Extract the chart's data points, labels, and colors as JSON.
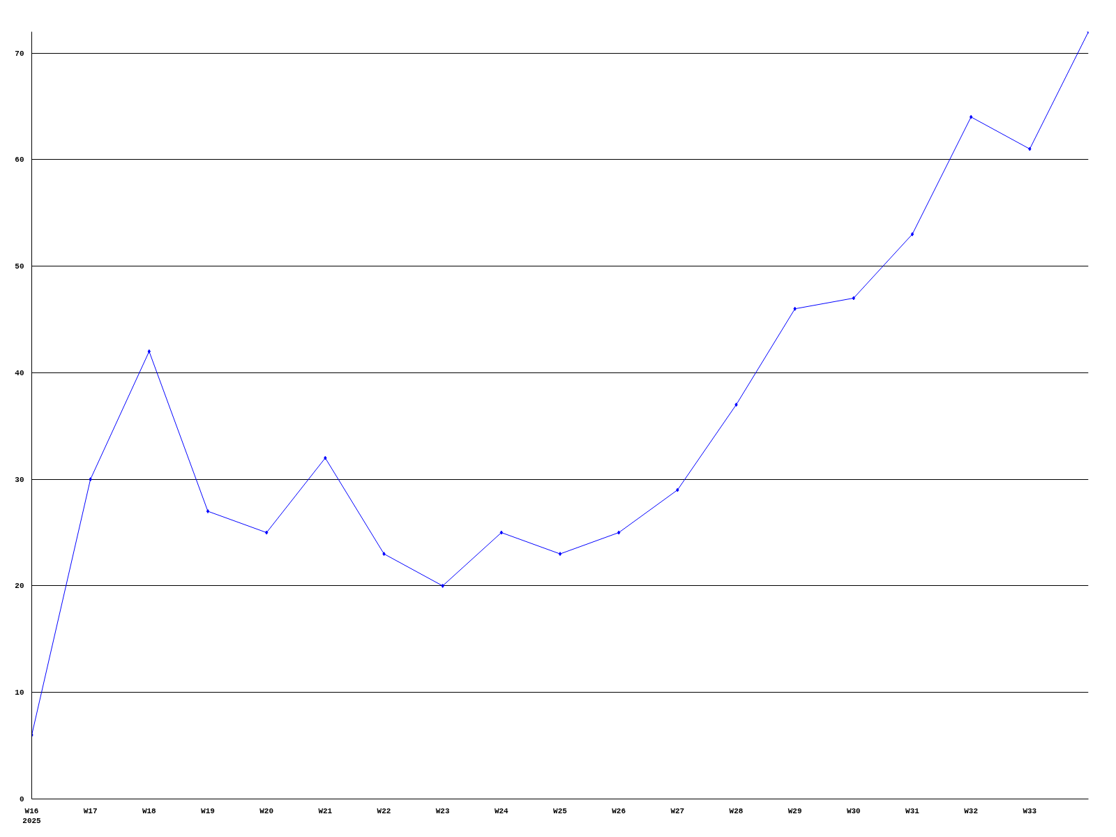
{
  "chart_data": {
    "type": "line",
    "categories": [
      "W16\n2025",
      "W17",
      "W18",
      "W19",
      "W20",
      "W21",
      "W22",
      "W23",
      "W24",
      "W25",
      "W26",
      "W27",
      "W28",
      "W29",
      "W30",
      "W31",
      "W32",
      "W33",
      null
    ],
    "series": [
      {
        "color": "#0000ff",
        "values": [
          6,
          30,
          42,
          27,
          25,
          32,
          23,
          20,
          25,
          23,
          25,
          29,
          37,
          46,
          47,
          53,
          64,
          61,
          72
        ]
      }
    ],
    "ylim": [
      0,
      72
    ],
    "yticks": [
      0,
      10,
      20,
      30,
      40,
      50,
      60,
      70
    ],
    "grid": "y",
    "marker": "diamond",
    "line_style": "solid"
  }
}
